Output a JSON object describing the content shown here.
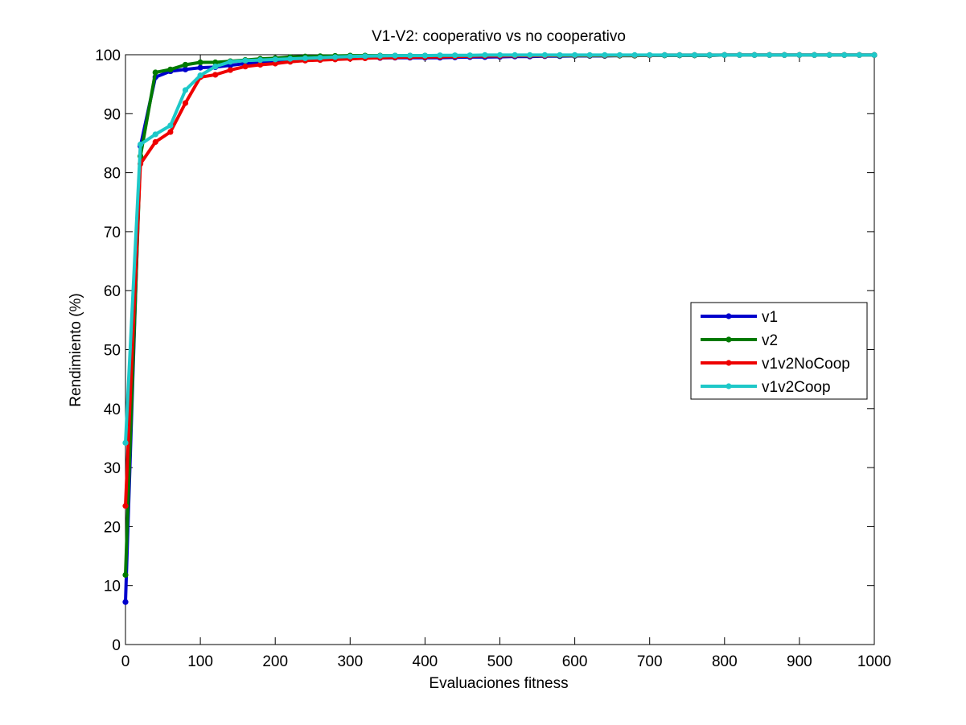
{
  "chart_data": {
    "type": "line",
    "title": "V1-V2: cooperativo vs no cooperativo",
    "xlabel": "Evaluaciones fitness",
    "ylabel": "Rendimiento (%)",
    "xlim": [
      0,
      1000
    ],
    "ylim": [
      0,
      100
    ],
    "xticks": [
      0,
      100,
      200,
      300,
      400,
      500,
      600,
      700,
      800,
      900,
      1000
    ],
    "yticks": [
      0,
      10,
      20,
      30,
      40,
      50,
      60,
      70,
      80,
      90,
      100
    ],
    "grid": false,
    "legend_position": "right",
    "x": [
      0,
      20,
      40,
      60,
      80,
      100,
      120,
      140,
      160,
      180,
      200,
      220,
      240,
      260,
      280,
      300,
      320,
      340,
      360,
      380,
      400,
      420,
      440,
      460,
      480,
      500,
      520,
      540,
      560,
      580,
      600,
      620,
      640,
      660,
      680,
      700,
      720,
      740,
      760,
      780,
      800,
      820,
      840,
      860,
      880,
      900,
      920,
      940,
      960,
      980,
      1000
    ],
    "series": [
      {
        "name": "v1",
        "color": "#0000cc",
        "values": [
          7.2,
          84.5,
          96.2,
          97.2,
          97.5,
          97.8,
          97.9,
          98.2,
          98.5,
          98.8,
          99.0,
          99.1,
          99.2,
          99.3,
          99.35,
          99.4,
          99.45,
          99.45,
          99.5,
          99.5,
          99.5,
          99.5,
          99.55,
          99.6,
          99.6,
          99.65,
          99.7,
          99.7,
          99.75,
          99.75,
          99.8,
          99.8,
          99.8,
          99.85,
          99.85,
          99.9,
          99.9,
          99.9,
          99.9,
          99.9,
          99.95,
          99.95,
          99.95,
          99.95,
          99.95,
          99.95,
          99.95,
          99.95,
          99.95,
          99.95,
          99.95
        ]
      },
      {
        "name": "v2",
        "color": "#007a00",
        "values": [
          11.8,
          82.8,
          97.0,
          97.5,
          98.3,
          98.7,
          98.7,
          98.9,
          99.1,
          99.3,
          99.4,
          99.6,
          99.7,
          99.75,
          99.8,
          99.85,
          99.85,
          99.85,
          99.85,
          99.85,
          99.85,
          99.85,
          99.85,
          99.85,
          99.85,
          99.85,
          99.85,
          99.85,
          99.85,
          99.85,
          99.85,
          99.85,
          99.85,
          99.85,
          99.85,
          99.9,
          99.9,
          99.9,
          99.9,
          99.9,
          99.95,
          99.95,
          99.95,
          99.95,
          99.95,
          99.95,
          99.95,
          99.95,
          99.95,
          99.95,
          99.95
        ]
      },
      {
        "name": "v1v2NoCoop",
        "color": "#ee0000",
        "values": [
          23.5,
          81.5,
          85.2,
          86.9,
          91.8,
          96.2,
          96.6,
          97.4,
          98.0,
          98.3,
          98.5,
          98.8,
          99.0,
          99.1,
          99.2,
          99.3,
          99.4,
          99.5,
          99.55,
          99.6,
          99.6,
          99.65,
          99.7,
          99.75,
          99.8,
          99.8,
          99.85,
          99.85,
          99.85,
          99.9,
          99.9,
          99.9,
          99.9,
          99.9,
          99.9,
          99.9,
          99.95,
          99.95,
          99.95,
          99.95,
          99.95,
          99.95,
          99.95,
          99.95,
          99.95,
          99.95,
          99.95,
          99.95,
          99.95,
          99.95,
          99.95
        ]
      },
      {
        "name": "v1v2Coop",
        "color": "#1ec8c8",
        "values": [
          34.2,
          84.8,
          86.5,
          88.0,
          94.0,
          96.5,
          98.0,
          98.8,
          99.0,
          99.1,
          99.2,
          99.3,
          99.4,
          99.5,
          99.6,
          99.7,
          99.75,
          99.8,
          99.85,
          99.85,
          99.85,
          99.9,
          99.9,
          99.9,
          99.95,
          99.95,
          99.95,
          99.95,
          99.95,
          99.95,
          99.95,
          99.95,
          99.95,
          99.95,
          99.95,
          99.95,
          99.95,
          99.95,
          99.95,
          99.95,
          99.95,
          99.95,
          99.95,
          99.95,
          99.95,
          99.95,
          99.95,
          99.95,
          99.95,
          99.95,
          99.95
        ]
      }
    ]
  }
}
